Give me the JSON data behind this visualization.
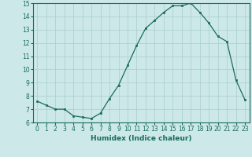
{
  "x": [
    0,
    1,
    2,
    3,
    4,
    5,
    6,
    7,
    8,
    9,
    10,
    11,
    12,
    13,
    14,
    15,
    16,
    17,
    18,
    19,
    20,
    21,
    22,
    23
  ],
  "y": [
    7.6,
    7.3,
    7.0,
    7.0,
    6.5,
    6.4,
    6.3,
    6.7,
    7.8,
    8.8,
    10.3,
    11.8,
    13.1,
    13.7,
    14.3,
    14.8,
    14.8,
    15.0,
    14.3,
    13.5,
    12.5,
    12.1,
    9.2,
    7.7
  ],
  "xlabel": "Humidex (Indice chaleur)",
  "ylim": [
    6,
    15
  ],
  "xlim": [
    -0.5,
    23.5
  ],
  "yticks": [
    6,
    7,
    8,
    9,
    10,
    11,
    12,
    13,
    14,
    15
  ],
  "xticks": [
    0,
    1,
    2,
    3,
    4,
    5,
    6,
    7,
    8,
    9,
    10,
    11,
    12,
    13,
    14,
    15,
    16,
    17,
    18,
    19,
    20,
    21,
    22,
    23
  ],
  "line_color": "#1a6b5e",
  "marker_color": "#1a6b5e",
  "bg_color": "#cce8e8",
  "grid_color": "#aacece",
  "xlabel_fontsize": 6.5,
  "tick_fontsize": 5.5
}
